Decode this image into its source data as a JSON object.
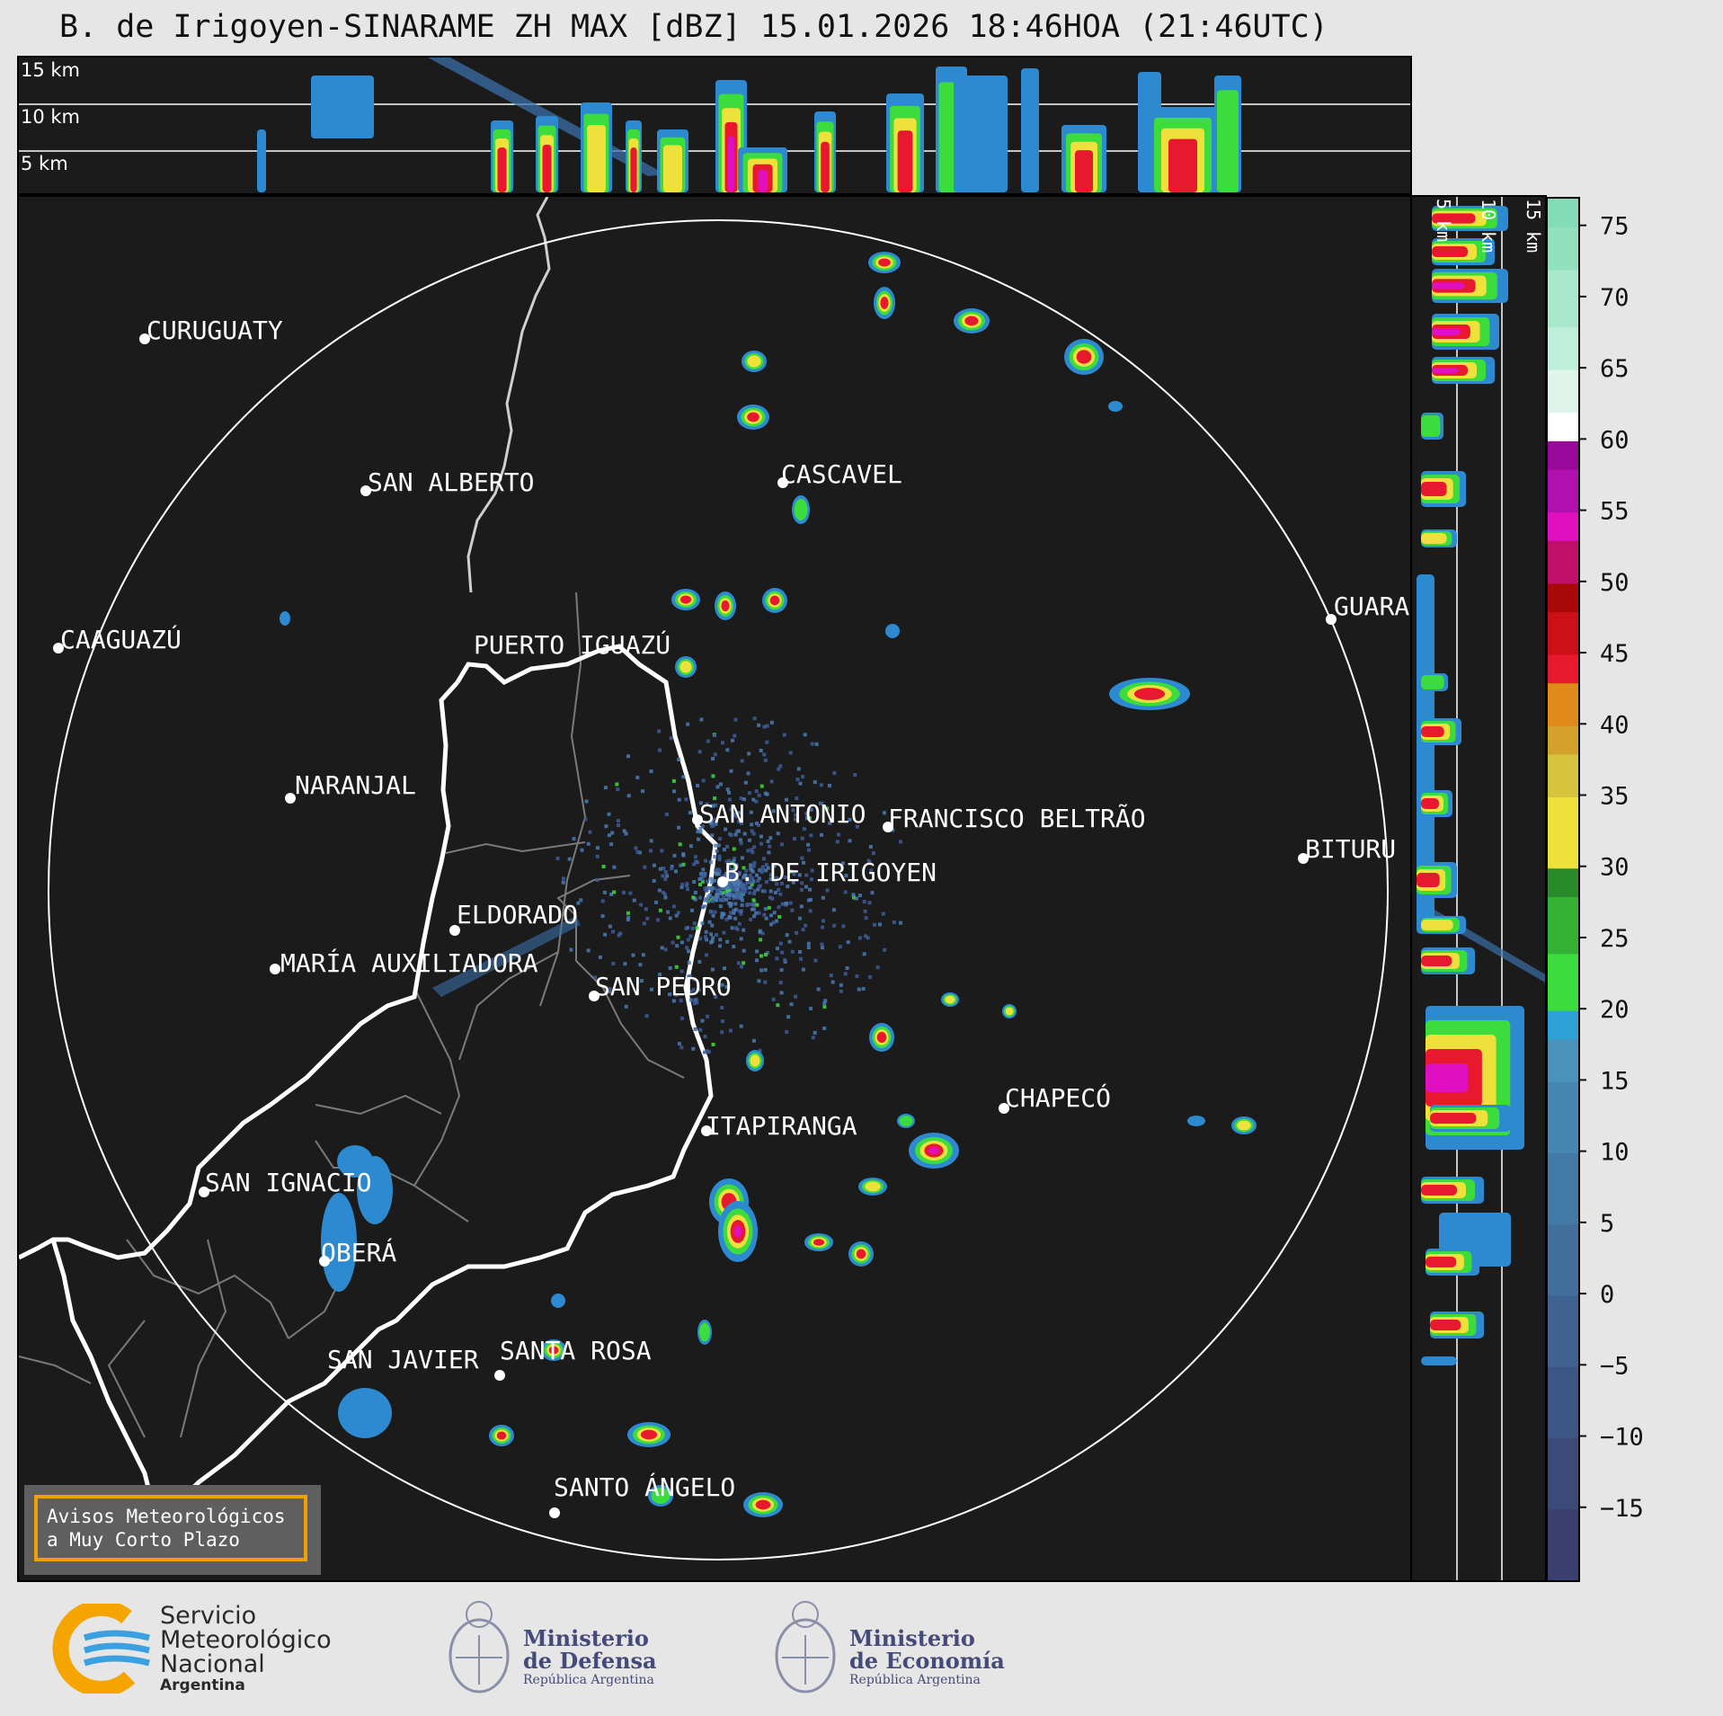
{
  "title": "B. de Irigoyen-SINARAME ZH MAX [dBZ] 15.01.2026 18:46HOA (21:46UTC)",
  "top_panel": {
    "altitude_labels": [
      "15 km",
      "10 km",
      "5 km"
    ]
  },
  "right_panel": {
    "altitude_labels": [
      "5 km",
      "10 km",
      "15 km"
    ]
  },
  "cities": [
    {
      "name": "CURUGUATY"
    },
    {
      "name": "SAN ALBERTO"
    },
    {
      "name": "CASCAVEL"
    },
    {
      "name": "CAAGUAZÚ"
    },
    {
      "name": "GUARA"
    },
    {
      "name": "PUERTO IGUAZÚ"
    },
    {
      "name": "NARANJAL"
    },
    {
      "name": "SAN ANTONIO"
    },
    {
      "name": "FRANCISCO BELTRÃO"
    },
    {
      "name": "BITURU"
    },
    {
      "name": "B. DE IRIGOYEN"
    },
    {
      "name": "ELDORADO"
    },
    {
      "name": "MARÍA AUXILIADORA"
    },
    {
      "name": "SAN PEDRO"
    },
    {
      "name": "CHAPECÓ"
    },
    {
      "name": "ITAPIRANGA"
    },
    {
      "name": "SAN IGNACIO"
    },
    {
      "name": "OBERÁ"
    },
    {
      "name": "SAN JAVIER"
    },
    {
      "name": "SANTA ROSA"
    },
    {
      "name": "SANTO ÁNGELO"
    }
  ],
  "warning_box": {
    "line1": "Avisos Meteorológicos",
    "line2": "a Muy Corto Plazo"
  },
  "colorbar": {
    "ticks": [
      "75",
      "70",
      "65",
      "60",
      "55",
      "50",
      "45",
      "40",
      "35",
      "30",
      "25",
      "20",
      "15",
      "10",
      "5",
      "0",
      "−5",
      "−10",
      "−15"
    ],
    "range": [
      -20,
      77
    ],
    "colors": [
      "#3a3f6e",
      "#3c4a7a",
      "#3e5686",
      "#406291",
      "#426e9c",
      "#447aa6",
      "#4686b0",
      "#4a92ba",
      "#2ea1d6",
      "#3cdc3c",
      "#33b233",
      "#288a28",
      "#eee13c",
      "#d8c43c",
      "#d4a12a",
      "#e08a1a",
      "#e8182e",
      "#cc1018",
      "#a80a0a",
      "#c0106a",
      "#e010c0",
      "#b010b0",
      "#9a0a9a",
      "#ffffff",
      "#dff5ea",
      "#bfefdb",
      "#a9e8cc",
      "#93e0bf",
      "#84dbb7"
    ]
  },
  "logos": {
    "smn": [
      "Servicio",
      "Meteorológico",
      "Nacional",
      "Argentina"
    ],
    "defensa": [
      "Ministerio",
      "de Defensa",
      "República Argentina"
    ],
    "economia": [
      "Ministerio",
      "de Economía",
      "República Argentina"
    ]
  }
}
